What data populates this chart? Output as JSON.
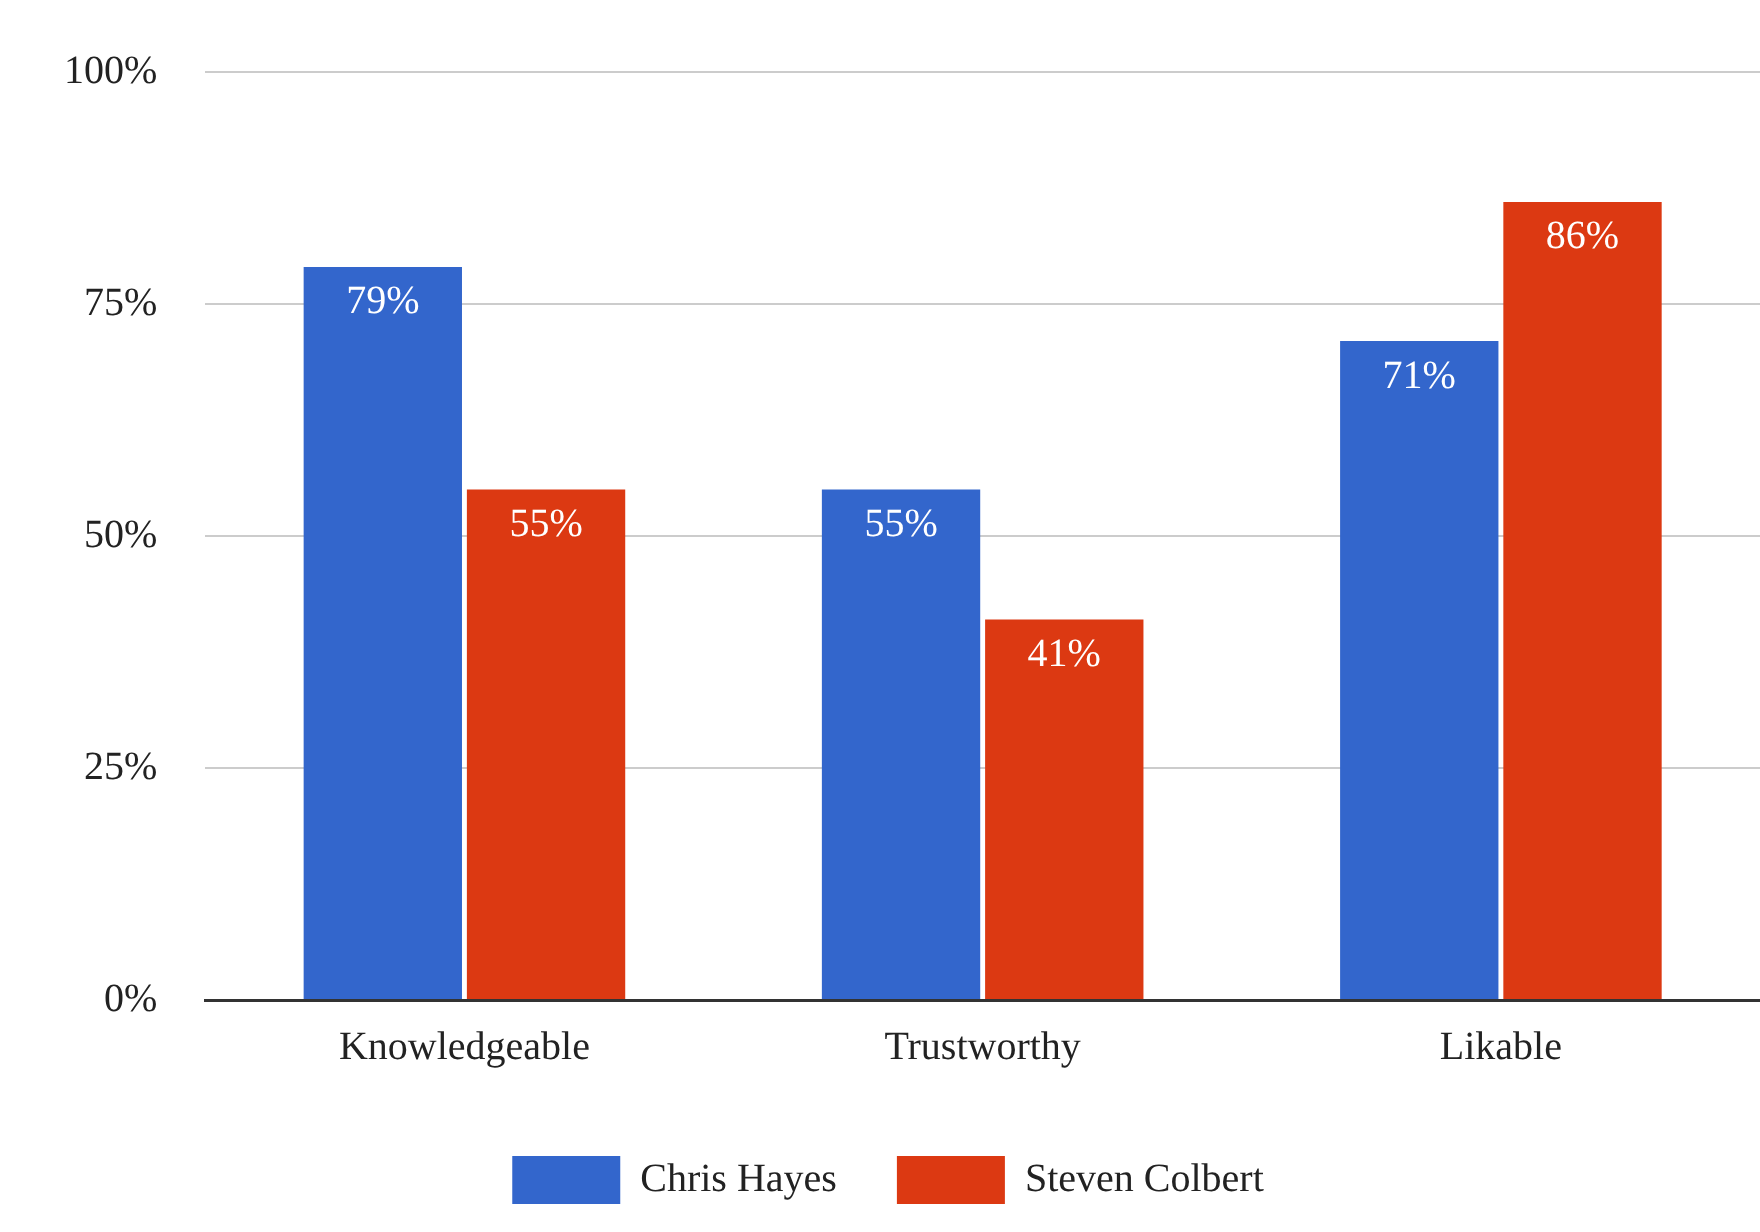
{
  "chart_data": {
    "type": "bar",
    "categories": [
      "Knowledgeable",
      "Trustworthy",
      "Likable"
    ],
    "series": [
      {
        "name": "Chris Hayes",
        "color": "#3366cc",
        "values": [
          79,
          55,
          71
        ],
        "value_labels": [
          "79%",
          "55%",
          "71%"
        ]
      },
      {
        "name": "Steven Colbert",
        "color": "#dc3912",
        "values": [
          55,
          41,
          86
        ],
        "value_labels": [
          "55%",
          "41%",
          "86%"
        ]
      }
    ],
    "ylim": [
      0,
      100
    ],
    "yticks": [
      {
        "value": 0,
        "label": "0%"
      },
      {
        "value": 25,
        "label": "25%"
      },
      {
        "value": 50,
        "label": "50%"
      },
      {
        "value": 75,
        "label": "75%"
      },
      {
        "value": 100,
        "label": "100%"
      }
    ],
    "grid": "y",
    "legend": "bottom"
  }
}
